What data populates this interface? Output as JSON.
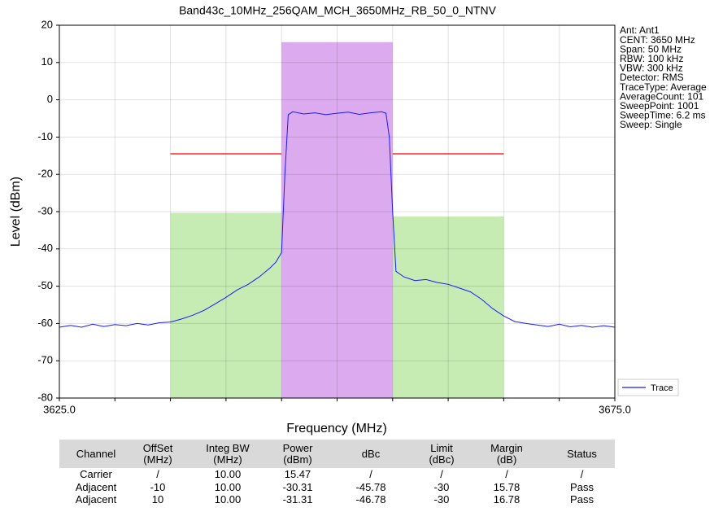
{
  "chart_data": {
    "type": "line",
    "title": "Band43c_10MHz_256QAM_MCH_3650MHz_RB_50_0_NTNV",
    "xlabel": "Frequency (MHz)",
    "ylabel": "Level (dBm)",
    "xlim": [
      3625,
      3675
    ],
    "ylim": [
      -80,
      20
    ],
    "xticks": [
      {
        "value": 3625,
        "label": "3625.0"
      },
      {
        "value": 3675,
        "label": "3675.0"
      }
    ],
    "xminor": [
      3630,
      3635,
      3640,
      3645,
      3650,
      3655,
      3660,
      3665,
      3670
    ],
    "yticks": [
      20,
      10,
      0,
      -10,
      -20,
      -30,
      -40,
      -50,
      -60,
      -70,
      -80
    ],
    "grid": true,
    "legend": "lower right",
    "bands": [
      {
        "x": [
          3635,
          3645
        ],
        "value": -30.31,
        "color": "#c6ecb4"
      },
      {
        "x": [
          3645,
          3655
        ],
        "value": 15.47,
        "color": "#dcaaee"
      },
      {
        "x": [
          3655,
          3665
        ],
        "value": -31.31,
        "color": "#c6ecb4"
      }
    ],
    "limit_line": {
      "color": "#ff0000",
      "value": -14.5,
      "segments": [
        [
          3635,
          3645
        ],
        [
          3655,
          3665
        ]
      ]
    },
    "series": [
      {
        "name": "Trace",
        "color": "#1a1aff",
        "x": [
          3625,
          3626,
          3627,
          3628,
          3629,
          3630,
          3631,
          3632,
          3633,
          3634,
          3635,
          3636,
          3637,
          3638,
          3639,
          3640,
          3641,
          3642,
          3643,
          3644,
          3644.5,
          3645,
          3645.3,
          3645.6,
          3646,
          3647,
          3648,
          3649,
          3650,
          3651,
          3652,
          3653,
          3654,
          3654.4,
          3654.7,
          3655,
          3655.3,
          3656,
          3657,
          3658,
          3659,
          3660,
          3661,
          3662,
          3663,
          3664,
          3665,
          3666,
          3667,
          3668,
          3669,
          3670,
          3671,
          3672,
          3673,
          3674,
          3675
        ],
        "values": [
          -61,
          -60.5,
          -61,
          -60.2,
          -60.8,
          -60.3,
          -60.6,
          -60,
          -60.4,
          -59.8,
          -59.6,
          -58.8,
          -57.8,
          -56.5,
          -54.8,
          -53,
          -51,
          -49.5,
          -47.5,
          -45,
          -43.5,
          -41,
          -20,
          -4,
          -3.2,
          -3.8,
          -3.5,
          -4,
          -3.6,
          -3.3,
          -3.9,
          -3.5,
          -3.2,
          -3.6,
          -10,
          -30,
          -46,
          -47.5,
          -48.5,
          -48.2,
          -49,
          -49.5,
          -50.5,
          -51.5,
          -53.5,
          -56,
          -58,
          -59.5,
          -60,
          -60.4,
          -60.8,
          -60.2,
          -60.9,
          -60.5,
          -61,
          -60.6,
          -61
        ]
      }
    ],
    "info": [
      "Ant: Ant1",
      "CENT: 3650 MHz",
      "Span: 50 MHz",
      "RBW: 100 kHz",
      "VBW: 300 kHz",
      "Detector: RMS",
      "TraceType: Average",
      "AverageCount: 101",
      "SweepPoint: 1001",
      "SweepTime: 6.2 ms",
      "Sweep: Single"
    ]
  },
  "table": {
    "columns": [
      "Channel",
      "OffSet\n(MHz)",
      "Integ BW\n(MHz)",
      "Power\n(dBm)",
      "dBc",
      "Limit\n(dBc)",
      "Margin\n(dB)",
      "Status"
    ],
    "rows": [
      [
        "Carrier",
        "/",
        "10.00",
        "15.47",
        "/",
        "/",
        "/",
        "/"
      ],
      [
        "Adjacent",
        "-10",
        "10.00",
        "-30.31",
        "-45.78",
        "-30",
        "15.78",
        "Pass"
      ],
      [
        "Adjacent",
        "10",
        "10.00",
        "-31.31",
        "-46.78",
        "-30",
        "16.78",
        "Pass"
      ]
    ]
  }
}
